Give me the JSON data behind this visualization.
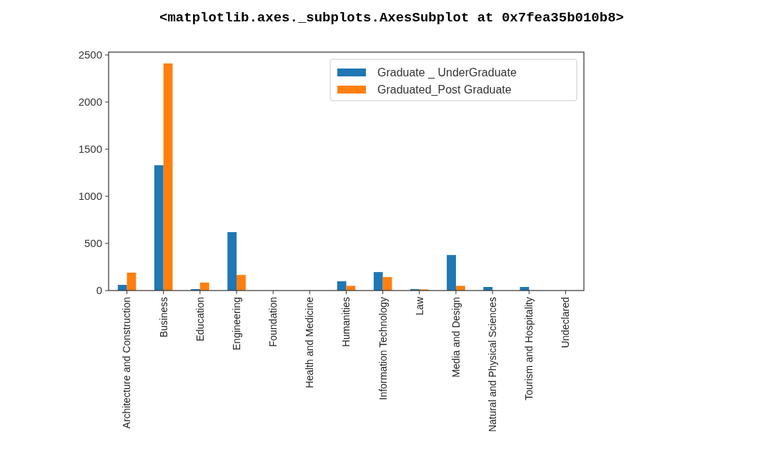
{
  "chart_data": {
    "type": "bar",
    "annotations": [
      "<matplotlib.axes._subplots.AxesSubplot at 0x7fea35b010b8>"
    ],
    "categories": [
      "Architecture and Construction",
      "Business",
      "Education",
      "Engineering",
      "Foundation",
      "Health and Medicine",
      "Humanities",
      "Information Technology",
      "Law",
      "Media and Design",
      "Natural and Physical Sciences",
      "Tourism and Hospitality",
      "Undeclared"
    ],
    "series": [
      {
        "name": "Graduate _ UnderGraduate",
        "color": "#1f77b4",
        "values": [
          60,
          1330,
          15,
          620,
          0,
          0,
          98,
          196,
          15,
          377,
          38,
          38,
          0
        ]
      },
      {
        "name": "Graduated_Post Graduate",
        "color": "#ff7f0e",
        "values": [
          190,
          2410,
          85,
          165,
          0,
          0,
          50,
          143,
          12,
          50,
          0,
          0,
          0
        ]
      }
    ],
    "ylim": [
      0,
      2530
    ],
    "yticks": [
      0,
      500,
      1000,
      1500,
      2000,
      2500
    ],
    "legend": "top right"
  }
}
